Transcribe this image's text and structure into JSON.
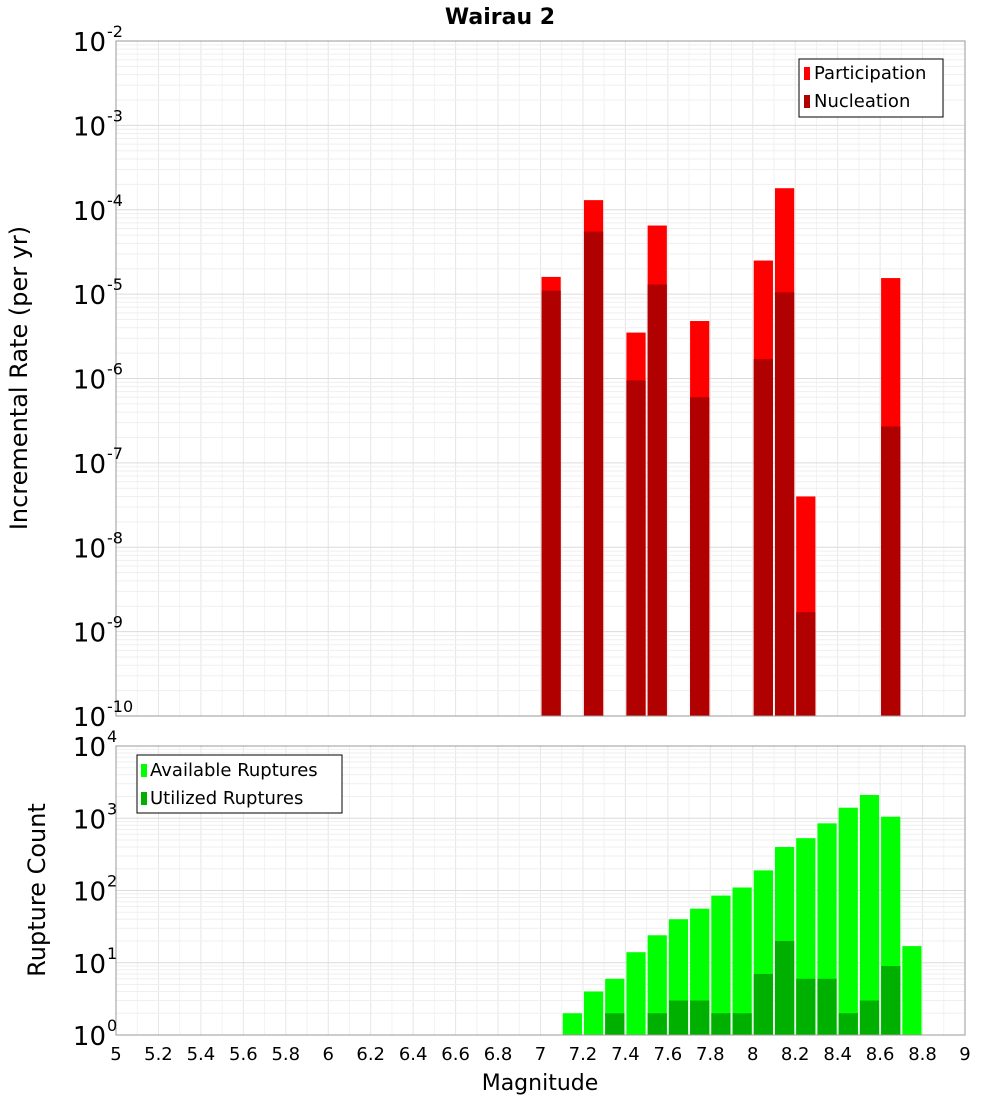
{
  "chart_data": [
    {
      "type": "bar",
      "title": "Wairau 2",
      "xlabel": "Magnitude",
      "ylabel": "Incremental Rate (per yr)",
      "y_scale": "log",
      "ylim_exponents": [
        -10,
        -2
      ],
      "xlim": [
        5,
        9
      ],
      "x_ticks": [
        "5",
        "5.2",
        "5.4",
        "5.6",
        "5.8",
        "6",
        "6.2",
        "6.4",
        "6.6",
        "6.8",
        "7",
        "7.2",
        "7.4",
        "7.6",
        "7.8",
        "8",
        "8.2",
        "8.4",
        "8.6",
        "8.8",
        "9"
      ],
      "legend_position": "top-right",
      "grid": true,
      "bar_width": 0.1,
      "series": [
        {
          "name": "Participation",
          "color": "#ff0000",
          "x": [
            7.05,
            7.25,
            7.45,
            7.55,
            7.75,
            8.05,
            8.15,
            8.25,
            8.65
          ],
          "values": [
            1.6e-05,
            0.00013,
            3.5e-06,
            6.5e-05,
            4.8e-06,
            2.5e-05,
            0.00018,
            4e-08,
            1.55e-05
          ]
        },
        {
          "name": "Nucleation",
          "color": "#b00000",
          "x": [
            7.05,
            7.25,
            7.45,
            7.55,
            7.75,
            8.05,
            8.15,
            8.25,
            8.65
          ],
          "values": [
            1.1e-05,
            5.5e-05,
            9.5e-07,
            1.3e-05,
            6e-07,
            1.7e-06,
            1.05e-05,
            1.7e-09,
            2.7e-07
          ]
        }
      ]
    },
    {
      "type": "bar",
      "xlabel": "Magnitude",
      "ylabel": "Rupture Count",
      "y_scale": "log",
      "ylim_exponents": [
        0,
        4
      ],
      "xlim": [
        5,
        9
      ],
      "legend_position": "top-left",
      "grid": true,
      "bar_width": 0.1,
      "series": [
        {
          "name": "Available Ruptures",
          "color": "#00ff00",
          "x": [
            6.85,
            7.05,
            7.15,
            7.25,
            7.35,
            7.45,
            7.55,
            7.65,
            7.75,
            7.85,
            7.95,
            8.05,
            8.15,
            8.25,
            8.35,
            8.45,
            8.55,
            8.65,
            8.75
          ],
          "values": [
            1,
            1,
            2,
            4,
            6,
            14,
            24,
            40,
            56,
            85,
            110,
            190,
            400,
            530,
            850,
            1400,
            2100,
            1050,
            17
          ]
        },
        {
          "name": "Utilized Ruptures",
          "color": "#00b000",
          "x": [
            7.05,
            7.25,
            7.35,
            7.45,
            7.55,
            7.65,
            7.75,
            7.85,
            7.95,
            8.05,
            8.15,
            8.25,
            8.35,
            8.45,
            8.55,
            8.65
          ],
          "values": [
            1,
            1,
            2,
            1,
            2,
            3,
            3,
            2,
            2,
            7,
            20,
            6,
            6,
            2,
            3,
            9
          ]
        }
      ]
    }
  ]
}
